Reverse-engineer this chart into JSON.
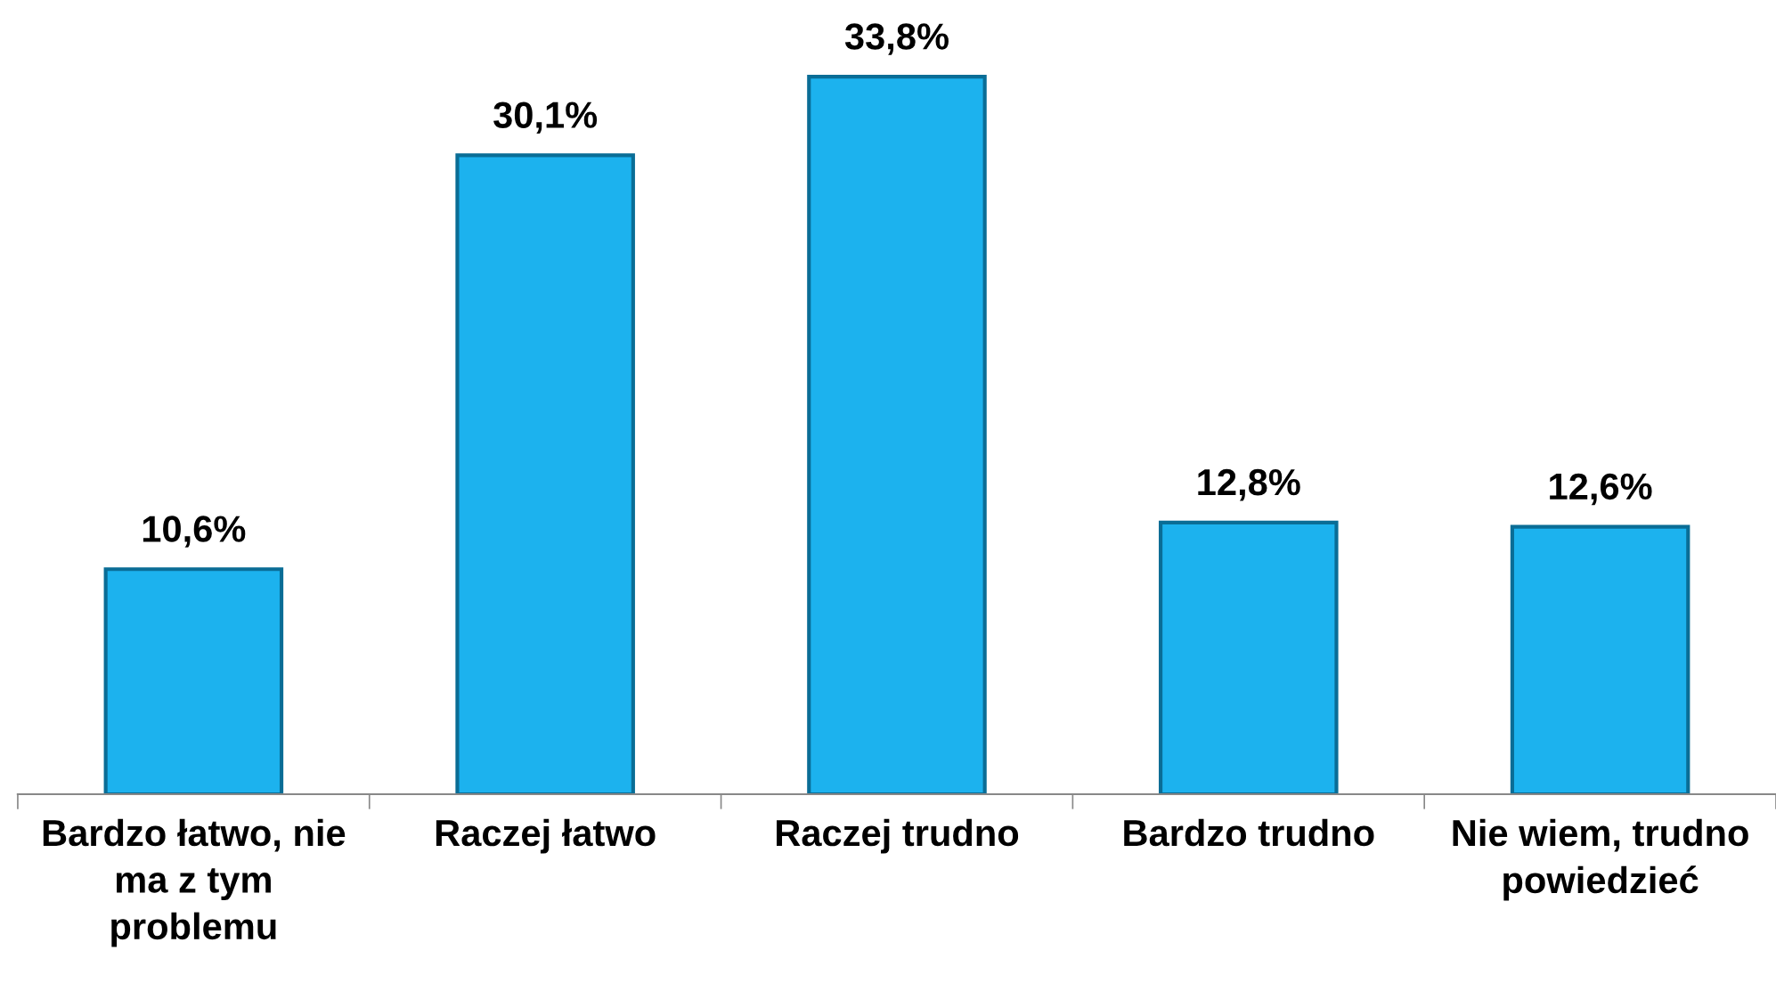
{
  "chart_data": {
    "type": "bar",
    "categories": [
      "Bardzo łatwo, nie\nma z tym\nproblemu",
      "Raczej łatwo",
      "Raczej trudno",
      "Bardzo trudno",
      "Nie wiem, trudno\npowiedzieć"
    ],
    "values": [
      10.6,
      30.1,
      33.8,
      12.8,
      12.6
    ],
    "value_labels": [
      "10,6%",
      "30,1%",
      "33,8%",
      "12,8%",
      "12,6%"
    ],
    "color": "#1cb2ee",
    "grid": false,
    "legend": false
  }
}
